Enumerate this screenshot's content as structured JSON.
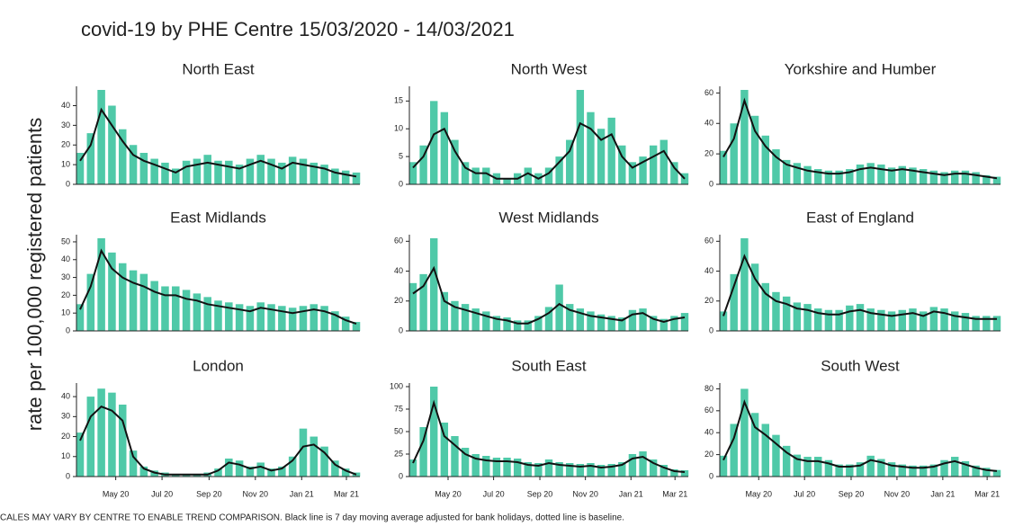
{
  "title": "covid-19 by PHE Centre 15/03/2020 - 14/03/2021",
  "ylabel": "rate per 100,000 registered patients",
  "footnote": "CALES MAY VARY BY CENTRE TO ENABLE TREND COMPARISON. Black line is 7 day moving average adjusted for bank holidays, dotted line is baseline.",
  "chart_data": [
    {
      "type": "bar",
      "title": "North East",
      "bar_color": "#4fc9a8",
      "line_color": "#111",
      "x": [
        0,
        14,
        28,
        42,
        56,
        70,
        84,
        98,
        112,
        126,
        140,
        154,
        168,
        182,
        196,
        210,
        224,
        238,
        252,
        266,
        280,
        294,
        308,
        322,
        336,
        350,
        364
      ],
      "xlim": [
        0,
        364
      ],
      "ylim": [
        0,
        48
      ],
      "yticks": [
        0,
        10,
        20,
        30,
        40
      ],
      "bars": [
        16,
        26,
        48,
        40,
        28,
        20,
        16,
        13,
        11,
        8,
        12,
        13,
        15,
        12,
        12,
        10,
        13,
        15,
        13,
        11,
        14,
        13,
        11,
        10,
        8,
        7,
        6
      ],
      "line": [
        12,
        20,
        38,
        30,
        22,
        15,
        12,
        10,
        8,
        6,
        9,
        10,
        11,
        10,
        9,
        8,
        10,
        12,
        10,
        8,
        11,
        10,
        9,
        8,
        6,
        5,
        4
      ]
    },
    {
      "type": "bar",
      "title": "North West",
      "bar_color": "#4fc9a8",
      "line_color": "#111",
      "x": [
        0,
        14,
        28,
        42,
        56,
        70,
        84,
        98,
        112,
        126,
        140,
        154,
        168,
        182,
        196,
        210,
        224,
        238,
        252,
        266,
        280,
        294,
        308,
        322,
        336,
        350,
        364
      ],
      "xlim": [
        0,
        364
      ],
      "ylim": [
        0,
        17
      ],
      "yticks": [
        0,
        5,
        10,
        15
      ],
      "bars": [
        4,
        7,
        15,
        13,
        8,
        4,
        3,
        3,
        2,
        1,
        2,
        3,
        2,
        3,
        5,
        8,
        17,
        13,
        10,
        12,
        7,
        4,
        5,
        7,
        8,
        4,
        2
      ],
      "line": [
        3,
        5,
        9,
        10,
        6,
        3,
        2,
        2,
        1,
        1,
        1,
        2,
        1,
        2,
        4,
        6,
        11,
        10,
        8,
        9,
        5,
        3,
        4,
        5,
        6,
        3,
        1
      ]
    },
    {
      "type": "bar",
      "title": "Yorkshire and Humber",
      "bar_color": "#4fc9a8",
      "line_color": "#111",
      "x": [
        0,
        14,
        28,
        42,
        56,
        70,
        84,
        98,
        112,
        126,
        140,
        154,
        168,
        182,
        196,
        210,
        224,
        238,
        252,
        266,
        280,
        294,
        308,
        322,
        336,
        350,
        364
      ],
      "xlim": [
        0,
        364
      ],
      "ylim": [
        0,
        62
      ],
      "yticks": [
        0,
        20,
        40,
        60
      ],
      "bars": [
        22,
        40,
        62,
        45,
        32,
        23,
        16,
        14,
        12,
        10,
        9,
        9,
        10,
        13,
        14,
        13,
        11,
        12,
        11,
        10,
        9,
        8,
        9,
        9,
        8,
        6,
        5
      ],
      "line": [
        18,
        30,
        55,
        35,
        25,
        18,
        13,
        11,
        9,
        8,
        7,
        7,
        8,
        10,
        11,
        10,
        9,
        10,
        9,
        8,
        7,
        6,
        7,
        7,
        6,
        5,
        4
      ]
    },
    {
      "type": "bar",
      "title": "East Midlands",
      "bar_color": "#4fc9a8",
      "line_color": "#111",
      "x": [
        0,
        14,
        28,
        42,
        56,
        70,
        84,
        98,
        112,
        126,
        140,
        154,
        168,
        182,
        196,
        210,
        224,
        238,
        252,
        266,
        280,
        294,
        308,
        322,
        336,
        350,
        364
      ],
      "xlim": [
        0,
        364
      ],
      "ylim": [
        0,
        52
      ],
      "yticks": [
        0,
        10,
        20,
        30,
        40,
        50
      ],
      "bars": [
        15,
        32,
        52,
        44,
        38,
        34,
        32,
        28,
        25,
        25,
        23,
        21,
        19,
        17,
        16,
        15,
        14,
        16,
        15,
        14,
        13,
        14,
        15,
        14,
        11,
        8,
        5
      ],
      "line": [
        12,
        25,
        45,
        35,
        30,
        27,
        25,
        22,
        20,
        20,
        18,
        17,
        15,
        14,
        13,
        12,
        11,
        13,
        12,
        11,
        10,
        11,
        12,
        11,
        9,
        6,
        4
      ]
    },
    {
      "type": "bar",
      "title": "West Midlands",
      "bar_color": "#4fc9a8",
      "line_color": "#111",
      "x": [
        0,
        14,
        28,
        42,
        56,
        70,
        84,
        98,
        112,
        126,
        140,
        154,
        168,
        182,
        196,
        210,
        224,
        238,
        252,
        266,
        280,
        294,
        308,
        322,
        336,
        350,
        364
      ],
      "xlim": [
        0,
        364
      ],
      "ylim": [
        0,
        62
      ],
      "yticks": [
        0,
        20,
        40,
        60
      ],
      "bars": [
        32,
        38,
        62,
        26,
        20,
        18,
        15,
        13,
        10,
        9,
        7,
        7,
        10,
        16,
        31,
        18,
        15,
        13,
        11,
        10,
        9,
        14,
        15,
        10,
        8,
        10,
        12
      ],
      "line": [
        25,
        30,
        42,
        20,
        16,
        14,
        12,
        10,
        8,
        7,
        5,
        5,
        8,
        12,
        18,
        14,
        12,
        10,
        9,
        8,
        7,
        11,
        12,
        8,
        6,
        8,
        9
      ]
    },
    {
      "type": "bar",
      "title": "East of England",
      "bar_color": "#4fc9a8",
      "line_color": "#111",
      "x": [
        0,
        14,
        28,
        42,
        56,
        70,
        84,
        98,
        112,
        126,
        140,
        154,
        168,
        182,
        196,
        210,
        224,
        238,
        252,
        266,
        280,
        294,
        308,
        322,
        336,
        350,
        364
      ],
      "xlim": [
        0,
        364
      ],
      "ylim": [
        0,
        62
      ],
      "yticks": [
        0,
        20,
        40,
        60
      ],
      "bars": [
        13,
        38,
        62,
        45,
        32,
        26,
        23,
        19,
        18,
        15,
        14,
        14,
        17,
        18,
        15,
        14,
        13,
        14,
        15,
        13,
        16,
        15,
        13,
        12,
        10,
        10,
        10
      ],
      "line": [
        10,
        30,
        50,
        35,
        25,
        20,
        18,
        15,
        14,
        12,
        11,
        11,
        13,
        14,
        12,
        11,
        10,
        11,
        12,
        10,
        13,
        12,
        10,
        9,
        8,
        8,
        8
      ]
    },
    {
      "type": "bar",
      "title": "London",
      "bar_color": "#4fc9a8",
      "line_color": "#111",
      "x": [
        0,
        14,
        28,
        42,
        56,
        70,
        84,
        98,
        112,
        126,
        140,
        154,
        168,
        182,
        196,
        210,
        224,
        238,
        252,
        266,
        280,
        294,
        308,
        322,
        336,
        350,
        364
      ],
      "xlim": [
        0,
        364
      ],
      "ylim": [
        0,
        45
      ],
      "yticks": [
        0,
        10,
        20,
        30,
        40
      ],
      "xticks": [
        {
          "value": 47,
          "label": "May 20"
        },
        {
          "value": 108,
          "label": "Jul 20"
        },
        {
          "value": 170,
          "label": "Sep 20"
        },
        {
          "value": 231,
          "label": "Nov 20"
        },
        {
          "value": 292,
          "label": "Jan 21"
        },
        {
          "value": 351,
          "label": "Mar 21"
        }
      ],
      "bars": [
        22,
        40,
        44,
        42,
        36,
        13,
        5,
        3,
        2,
        1,
        1,
        1,
        2,
        4,
        9,
        8,
        5,
        7,
        4,
        5,
        10,
        24,
        20,
        15,
        8,
        4,
        2
      ],
      "line": [
        18,
        30,
        35,
        33,
        28,
        10,
        4,
        2,
        1,
        1,
        1,
        1,
        1,
        3,
        7,
        6,
        4,
        5,
        3,
        4,
        8,
        15,
        16,
        12,
        6,
        3,
        1
      ]
    },
    {
      "type": "bar",
      "title": "South East",
      "bar_color": "#4fc9a8",
      "line_color": "#111",
      "x": [
        0,
        14,
        28,
        42,
        56,
        70,
        84,
        98,
        112,
        126,
        140,
        154,
        168,
        182,
        196,
        210,
        224,
        238,
        252,
        266,
        280,
        294,
        308,
        322,
        336,
        350,
        364
      ],
      "xlim": [
        0,
        364
      ],
      "ylim": [
        0,
        100
      ],
      "yticks": [
        0,
        25,
        50,
        75,
        100
      ],
      "xticks": [
        {
          "value": 47,
          "label": "May 20"
        },
        {
          "value": 108,
          "label": "Jul 20"
        },
        {
          "value": 170,
          "label": "Sep 20"
        },
        {
          "value": 231,
          "label": "Nov 20"
        },
        {
          "value": 292,
          "label": "Jan 21"
        },
        {
          "value": 351,
          "label": "Mar 21"
        }
      ],
      "bars": [
        19,
        55,
        100,
        60,
        45,
        32,
        25,
        23,
        21,
        21,
        20,
        16,
        15,
        19,
        16,
        15,
        14,
        15,
        13,
        14,
        16,
        25,
        28,
        19,
        13,
        8,
        7
      ],
      "line": [
        15,
        40,
        82,
        45,
        35,
        25,
        20,
        18,
        17,
        17,
        16,
        13,
        12,
        15,
        13,
        12,
        11,
        12,
        10,
        11,
        13,
        20,
        22,
        15,
        10,
        6,
        5
      ]
    },
    {
      "type": "bar",
      "title": "South West",
      "bar_color": "#4fc9a8",
      "line_color": "#111",
      "x": [
        0,
        14,
        28,
        42,
        56,
        70,
        84,
        98,
        112,
        126,
        140,
        154,
        168,
        182,
        196,
        210,
        224,
        238,
        252,
        266,
        280,
        294,
        308,
        322,
        336,
        350,
        364
      ],
      "xlim": [
        0,
        364
      ],
      "ylim": [
        0,
        82
      ],
      "yticks": [
        0,
        20,
        40,
        60,
        80
      ],
      "xticks": [
        {
          "value": 47,
          "label": "May 20"
        },
        {
          "value": 108,
          "label": "Jul 20"
        },
        {
          "value": 170,
          "label": "Sep 20"
        },
        {
          "value": 231,
          "label": "Nov 20"
        },
        {
          "value": 292,
          "label": "Jan 21"
        },
        {
          "value": 351,
          "label": "Mar 21"
        }
      ],
      "bars": [
        19,
        48,
        80,
        58,
        48,
        38,
        28,
        20,
        18,
        18,
        15,
        11,
        11,
        13,
        19,
        16,
        13,
        11,
        10,
        10,
        11,
        15,
        18,
        14,
        10,
        8,
        6
      ],
      "line": [
        15,
        35,
        68,
        45,
        38,
        30,
        22,
        16,
        14,
        14,
        12,
        9,
        9,
        10,
        15,
        13,
        10,
        9,
        8,
        8,
        9,
        12,
        14,
        11,
        8,
        6,
        5
      ]
    }
  ]
}
